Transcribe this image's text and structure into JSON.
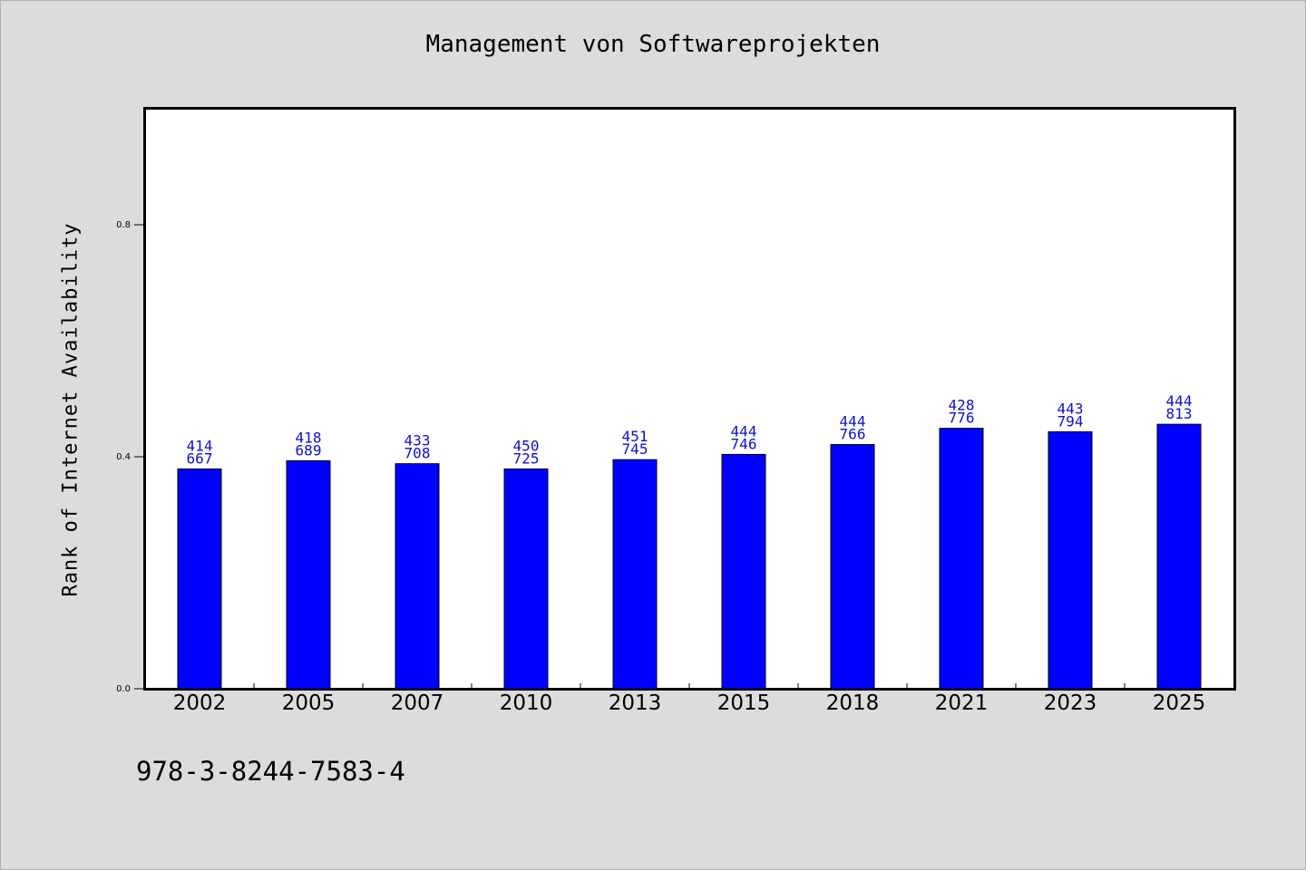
{
  "chart_data": {
    "type": "bar",
    "title": "Management von Softwareprojekten",
    "ylabel": "Rank of Internet Availability",
    "xlabel": "",
    "categories": [
      "2002",
      "2005",
      "2007",
      "2010",
      "2013",
      "2015",
      "2018",
      "2021",
      "2023",
      "2025"
    ],
    "values": [
      0.379,
      0.393,
      0.388,
      0.379,
      0.395,
      0.404,
      0.421,
      0.449,
      0.443,
      0.456
    ],
    "bar_labels": [
      [
        "414",
        "667"
      ],
      [
        "418",
        "689"
      ],
      [
        "433",
        "708"
      ],
      [
        "450",
        "725"
      ],
      [
        "451",
        "745"
      ],
      [
        "444",
        "746"
      ],
      [
        "444",
        "766"
      ],
      [
        "428",
        "776"
      ],
      [
        "443",
        "794"
      ],
      [
        "444",
        "813"
      ]
    ],
    "ylim": [
      0,
      1.0
    ],
    "yticks": [
      0.0,
      0.4,
      0.8
    ],
    "ytick_labels": [
      "0.0",
      "0.4",
      "0.8"
    ],
    "grid": false,
    "colors": {
      "bar": "#0000ff",
      "bar_label": "#1010c8",
      "background": "#dcdcdc",
      "plot_background": "#ffffff"
    }
  },
  "footer": {
    "code": "978-3-8244-7583-4"
  }
}
